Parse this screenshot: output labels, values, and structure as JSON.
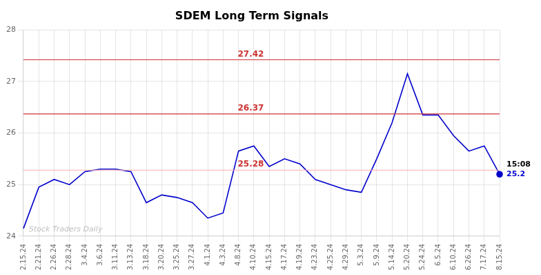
{
  "chart_data": {
    "type": "line",
    "title": "SDEM Long Term Signals",
    "categories": [
      "2.15.24",
      "2.21.24",
      "2.26.24",
      "2.28.24",
      "3.4.24",
      "3.6.24",
      "3.11.24",
      "3.13.24",
      "3.18.24",
      "3.20.24",
      "3.25.24",
      "3.27.24",
      "4.1.24",
      "4.3.24",
      "4.8.24",
      "4.10.24",
      "4.15.24",
      "4.17.24",
      "4.19.24",
      "4.23.24",
      "4.25.24",
      "4.29.24",
      "5.3.24",
      "5.9.24",
      "5.14.24",
      "5.20.24",
      "5.24.24",
      "6.5.24",
      "6.10.24",
      "6.26.24",
      "7.17.24",
      "8.15.24"
    ],
    "values": [
      24.15,
      24.95,
      25.1,
      25.0,
      25.25,
      25.3,
      25.3,
      25.25,
      24.65,
      24.8,
      24.75,
      24.65,
      24.35,
      24.45,
      25.65,
      25.75,
      25.35,
      25.5,
      25.4,
      25.1,
      25.0,
      24.9,
      24.85,
      25.5,
      26.2,
      27.15,
      26.35,
      26.35,
      25.95,
      25.65,
      25.75,
      25.2
    ],
    "color": "#0000cc",
    "hlines": [
      {
        "value": 27.42,
        "label": "27.42",
        "color": "#cc3333",
        "label_color": "#cc3333"
      },
      {
        "value": 26.37,
        "label": "26.37",
        "color": "#cc3333",
        "label_color": "#cc3333"
      },
      {
        "value": 25.28,
        "label": "25.28",
        "color": "#ffaaaa",
        "label_color": "#cc3333"
      }
    ],
    "annotations": [
      {
        "text": "15:08",
        "color": "#000000"
      },
      {
        "text": "25.2",
        "color": "#0000cc"
      }
    ],
    "watermark": "Stock Traders Daily",
    "ylim": [
      24.0,
      28.0
    ],
    "yticks": [
      24,
      25,
      26,
      27,
      28
    ],
    "grid": true
  }
}
